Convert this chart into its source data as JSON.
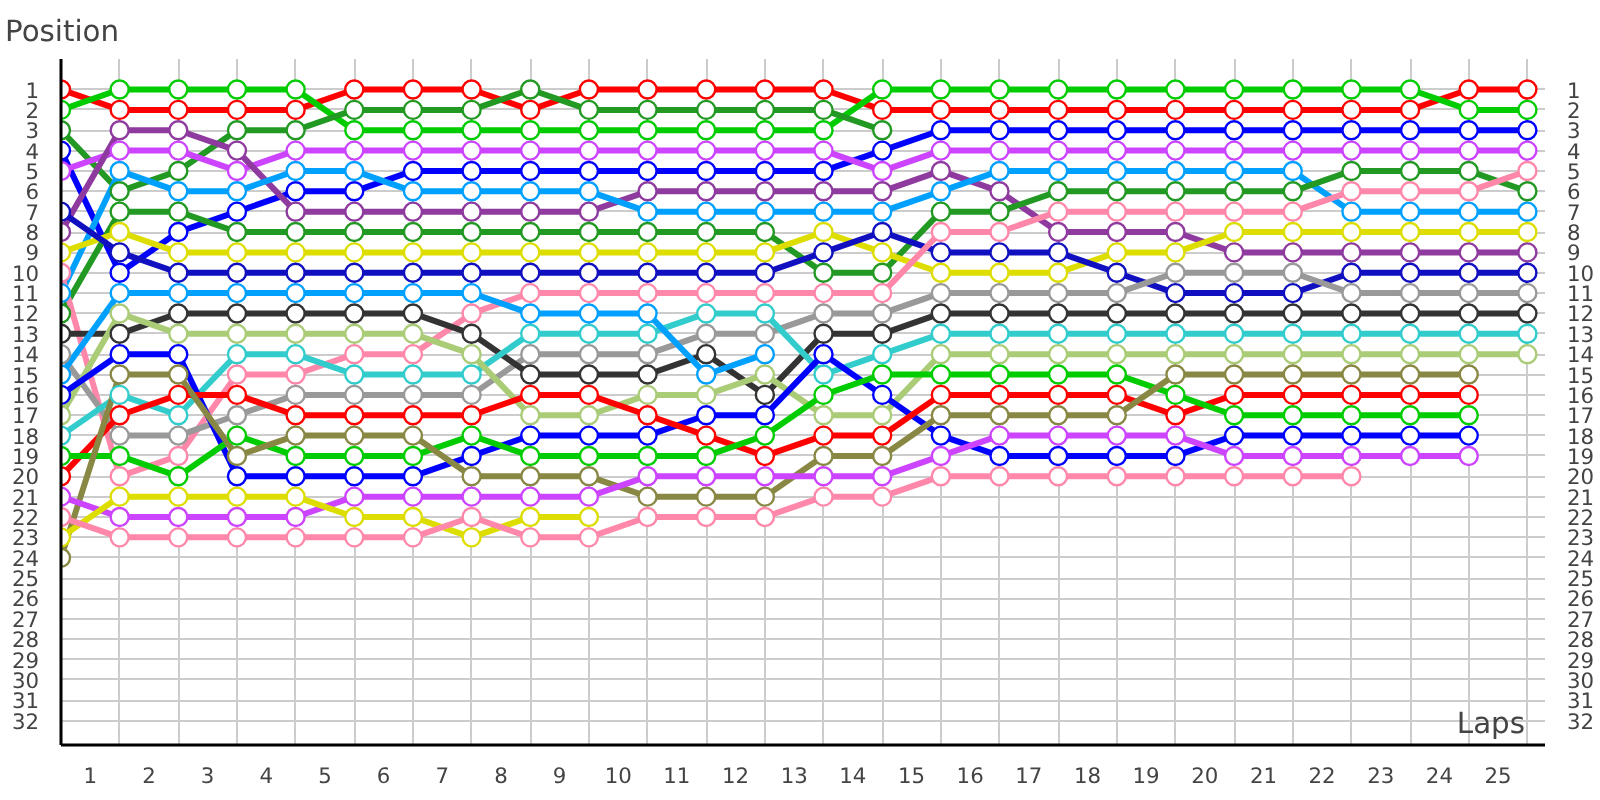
{
  "chart_data": {
    "type": "line",
    "xlabel": "Laps",
    "ylabel": "Position",
    "x": [
      0,
      1,
      2,
      3,
      4,
      5,
      6,
      7,
      8,
      9,
      10,
      11,
      12,
      13,
      14,
      15,
      16,
      17,
      18,
      19,
      20,
      21,
      22,
      23,
      24,
      25
    ],
    "xlim": [
      0,
      25.3
    ],
    "xticks": [
      {
        "value": 0.5,
        "label": "1"
      },
      {
        "value": 1.5,
        "label": "2"
      },
      {
        "value": 2.5,
        "label": "3"
      },
      {
        "value": 3.5,
        "label": "4"
      },
      {
        "value": 4.5,
        "label": "5"
      },
      {
        "value": 5.5,
        "label": "6"
      },
      {
        "value": 6.5,
        "label": "7"
      },
      {
        "value": 7.5,
        "label": "8"
      },
      {
        "value": 8.5,
        "label": "9"
      },
      {
        "value": 9.5,
        "label": "10"
      },
      {
        "value": 10.5,
        "label": "11"
      },
      {
        "value": 11.5,
        "label": "12"
      },
      {
        "value": 12.5,
        "label": "13"
      },
      {
        "value": 13.5,
        "label": "14"
      },
      {
        "value": 14.5,
        "label": "15"
      },
      {
        "value": 15.5,
        "label": "16"
      },
      {
        "value": 16.5,
        "label": "17"
      },
      {
        "value": 17.5,
        "label": "18"
      },
      {
        "value": 18.5,
        "label": "19"
      },
      {
        "value": 19.5,
        "label": "20"
      },
      {
        "value": 20.5,
        "label": "21"
      },
      {
        "value": 21.5,
        "label": "22"
      },
      {
        "value": 22.5,
        "label": "23"
      },
      {
        "value": 23.5,
        "label": "24"
      },
      {
        "value": 24.5,
        "label": "25"
      },
      {
        "value": 0,
        "label": null
      },
      {
        "value": 1,
        "label": null
      },
      {
        "value": 2,
        "label": null
      },
      {
        "value": 3,
        "label": null
      },
      {
        "value": 4,
        "label": null
      },
      {
        "value": 5,
        "label": null
      },
      {
        "value": 6,
        "label": null
      },
      {
        "value": 7,
        "label": null
      },
      {
        "value": 8,
        "label": null
      },
      {
        "value": 9,
        "label": null
      },
      {
        "value": 10,
        "label": null
      },
      {
        "value": 11,
        "label": null
      },
      {
        "value": 12,
        "label": null
      },
      {
        "value": 13,
        "label": null
      },
      {
        "value": 14,
        "label": null
      },
      {
        "value": 15,
        "label": null
      },
      {
        "value": 16,
        "label": null
      },
      {
        "value": 17,
        "label": null
      },
      {
        "value": 18,
        "label": null
      },
      {
        "value": 19,
        "label": null
      },
      {
        "value": 20,
        "label": null
      },
      {
        "value": 21,
        "label": null
      },
      {
        "value": 22,
        "label": null
      },
      {
        "value": 23,
        "label": null
      },
      {
        "value": 24,
        "label": null
      },
      {
        "value": 25,
        "label": null
      }
    ],
    "ylim": [
      33.2,
      -0.5
    ],
    "yticks": [
      1,
      2,
      3,
      4,
      5,
      6,
      7,
      8,
      9,
      10,
      11,
      12,
      13,
      14,
      15,
      16,
      17,
      18,
      19,
      20,
      21,
      22,
      23,
      24,
      25,
      26,
      27,
      28,
      29,
      30,
      31,
      32
    ],
    "y2lim": [
      33.2,
      -0.5
    ],
    "y2ticks": [
      1,
      2,
      3,
      4,
      5,
      6,
      7,
      8,
      9,
      10,
      11,
      12,
      13,
      14,
      15,
      16,
      17,
      18,
      19,
      20,
      21,
      22,
      23,
      24,
      25,
      26,
      27,
      28,
      29,
      30,
      31,
      32
    ],
    "grid": true,
    "marker": "circle",
    "line_style": "solid",
    "series": [
      {
        "color": "#ff0000",
        "values": [
          1,
          2,
          2,
          2,
          2,
          1,
          1,
          1,
          2,
          1,
          1,
          1,
          1,
          1,
          2,
          2,
          2,
          2,
          2,
          2,
          2,
          2,
          2,
          2,
          1,
          1
        ]
      },
      {
        "color": "#00cc00",
        "values": [
          2,
          1,
          1,
          1,
          1,
          3,
          3,
          3,
          3,
          3,
          3,
          3,
          3,
          3,
          1,
          1,
          1,
          1,
          1,
          1,
          1,
          1,
          1,
          1,
          2,
          2
        ]
      },
      {
        "color": "#229922",
        "values": [
          3,
          6,
          5,
          3,
          3,
          2,
          2,
          2,
          1,
          2,
          2,
          2,
          2,
          2,
          3,
          null,
          null,
          null,
          null,
          null,
          null,
          null,
          null,
          null,
          null,
          null
        ]
      },
      {
        "color": "#0000ff",
        "values": [
          4,
          10,
          8,
          7,
          6,
          6,
          5,
          5,
          5,
          5,
          5,
          5,
          5,
          5,
          4,
          3,
          3,
          3,
          3,
          3,
          3,
          3,
          3,
          3,
          3,
          3
        ]
      },
      {
        "color": "#cc44ff",
        "values": [
          5,
          4,
          4,
          5,
          4,
          4,
          4,
          4,
          4,
          4,
          4,
          4,
          4,
          4,
          5,
          4,
          4,
          4,
          4,
          4,
          4,
          4,
          4,
          4,
          4,
          4
        ]
      },
      {
        "color": "#8e3a9e",
        "values": [
          8,
          3,
          3,
          4,
          7,
          7,
          7,
          7,
          7,
          7,
          6,
          6,
          6,
          6,
          6,
          5,
          6,
          8,
          8,
          8,
          9,
          9,
          9,
          9,
          9,
          9
        ]
      },
      {
        "color": "#00a0ff",
        "values": [
          11,
          5,
          6,
          6,
          5,
          5,
          6,
          6,
          6,
          6,
          7,
          7,
          7,
          7,
          7,
          6,
          5,
          5,
          5,
          5,
          5,
          5,
          7,
          7,
          7,
          7
        ]
      },
      {
        "color": "#229922",
        "values": [
          12,
          7,
          7,
          8,
          8,
          8,
          8,
          8,
          8,
          8,
          8,
          8,
          8,
          10,
          10,
          7,
          7,
          6,
          6,
          6,
          6,
          6,
          5,
          5,
          5,
          6
        ]
      },
      {
        "color": "#dddd00",
        "values": [
          9,
          8,
          9,
          9,
          9,
          9,
          9,
          9,
          9,
          9,
          9,
          9,
          9,
          8,
          9,
          10,
          10,
          10,
          9,
          9,
          8,
          8,
          8,
          8,
          8,
          8
        ]
      },
      {
        "color": "#1010c0",
        "values": [
          7,
          9,
          10,
          10,
          10,
          10,
          10,
          10,
          10,
          10,
          10,
          10,
          10,
          9,
          8,
          9,
          9,
          9,
          10,
          11,
          11,
          11,
          10,
          10,
          10,
          10
        ]
      },
      {
        "color": "#ff88aa",
        "values": [
          10,
          20,
          19,
          15,
          15,
          14,
          14,
          12,
          11,
          11,
          11,
          11,
          11,
          11,
          11,
          8,
          8,
          7,
          7,
          7,
          7,
          7,
          6,
          6,
          6,
          5
        ]
      },
      {
        "color": "#999999",
        "values": [
          14,
          18,
          18,
          17,
          16,
          16,
          16,
          16,
          14,
          14,
          14,
          13,
          13,
          12,
          12,
          11,
          11,
          11,
          11,
          10,
          10,
          10,
          11,
          11,
          11,
          11
        ]
      },
      {
        "color": "#333333",
        "values": [
          13,
          13,
          12,
          12,
          12,
          12,
          12,
          13,
          15,
          15,
          15,
          14,
          16,
          13,
          13,
          12,
          12,
          12,
          12,
          12,
          12,
          12,
          12,
          12,
          12,
          12
        ]
      },
      {
        "color": "#33cccc",
        "values": [
          18,
          16,
          17,
          14,
          14,
          15,
          15,
          15,
          13,
          13,
          13,
          12,
          12,
          15,
          14,
          13,
          13,
          13,
          13,
          13,
          13,
          13,
          13,
          13,
          13,
          13
        ]
      },
      {
        "color": "#aacc77",
        "values": [
          17,
          12,
          13,
          13,
          13,
          13,
          13,
          14,
          17,
          17,
          16,
          16,
          15,
          17,
          17,
          14,
          14,
          14,
          14,
          14,
          14,
          14,
          14,
          14,
          14,
          14
        ]
      },
      {
        "color": "#00a0ff",
        "values": [
          15,
          11,
          11,
          11,
          11,
          11,
          11,
          11,
          12,
          12,
          12,
          15,
          14,
          null,
          null,
          null,
          null,
          null,
          null,
          null,
          null,
          null,
          null,
          null,
          null,
          null
        ]
      },
      {
        "color": "#0000ff",
        "values": [
          16,
          14,
          14,
          20,
          20,
          20,
          20,
          19,
          18,
          18,
          18,
          17,
          17,
          14,
          16,
          18,
          19,
          19,
          19,
          19,
          18,
          18,
          18,
          18,
          18,
          null
        ]
      },
      {
        "color": "#ff0000",
        "values": [
          20,
          17,
          16,
          16,
          17,
          17,
          17,
          17,
          16,
          16,
          17,
          18,
          19,
          18,
          18,
          16,
          16,
          16,
          16,
          17,
          16,
          16,
          16,
          16,
          16,
          null
        ]
      },
      {
        "color": "#00cc00",
        "values": [
          19,
          19,
          20,
          18,
          19,
          19,
          19,
          18,
          19,
          19,
          19,
          19,
          18,
          16,
          15,
          15,
          15,
          15,
          15,
          16,
          17,
          17,
          17,
          17,
          17,
          null
        ]
      },
      {
        "color": "#888844",
        "values": [
          24,
          15,
          15,
          19,
          18,
          18,
          18,
          20,
          20,
          20,
          21,
          21,
          21,
          19,
          19,
          17,
          17,
          17,
          17,
          15,
          15,
          15,
          15,
          15,
          15,
          null
        ]
      },
      {
        "color": "#cc44ff",
        "values": [
          21,
          22,
          22,
          22,
          22,
          21,
          21,
          21,
          21,
          21,
          20,
          20,
          20,
          20,
          20,
          19,
          18,
          18,
          18,
          18,
          19,
          19,
          19,
          19,
          19,
          null
        ]
      },
      {
        "color": "#dddd00",
        "values": [
          23,
          21,
          21,
          21,
          21,
          22,
          22,
          23,
          22,
          22,
          null,
          null,
          null,
          null,
          null,
          null,
          null,
          null,
          null,
          null,
          null,
          null,
          null,
          null,
          null,
          null
        ]
      },
      {
        "color": "#ff88aa",
        "values": [
          22,
          23,
          23,
          23,
          23,
          23,
          23,
          22,
          23,
          23,
          22,
          22,
          22,
          21,
          21,
          20,
          20,
          20,
          20,
          20,
          20,
          20,
          20,
          null,
          null,
          null
        ]
      }
    ]
  }
}
